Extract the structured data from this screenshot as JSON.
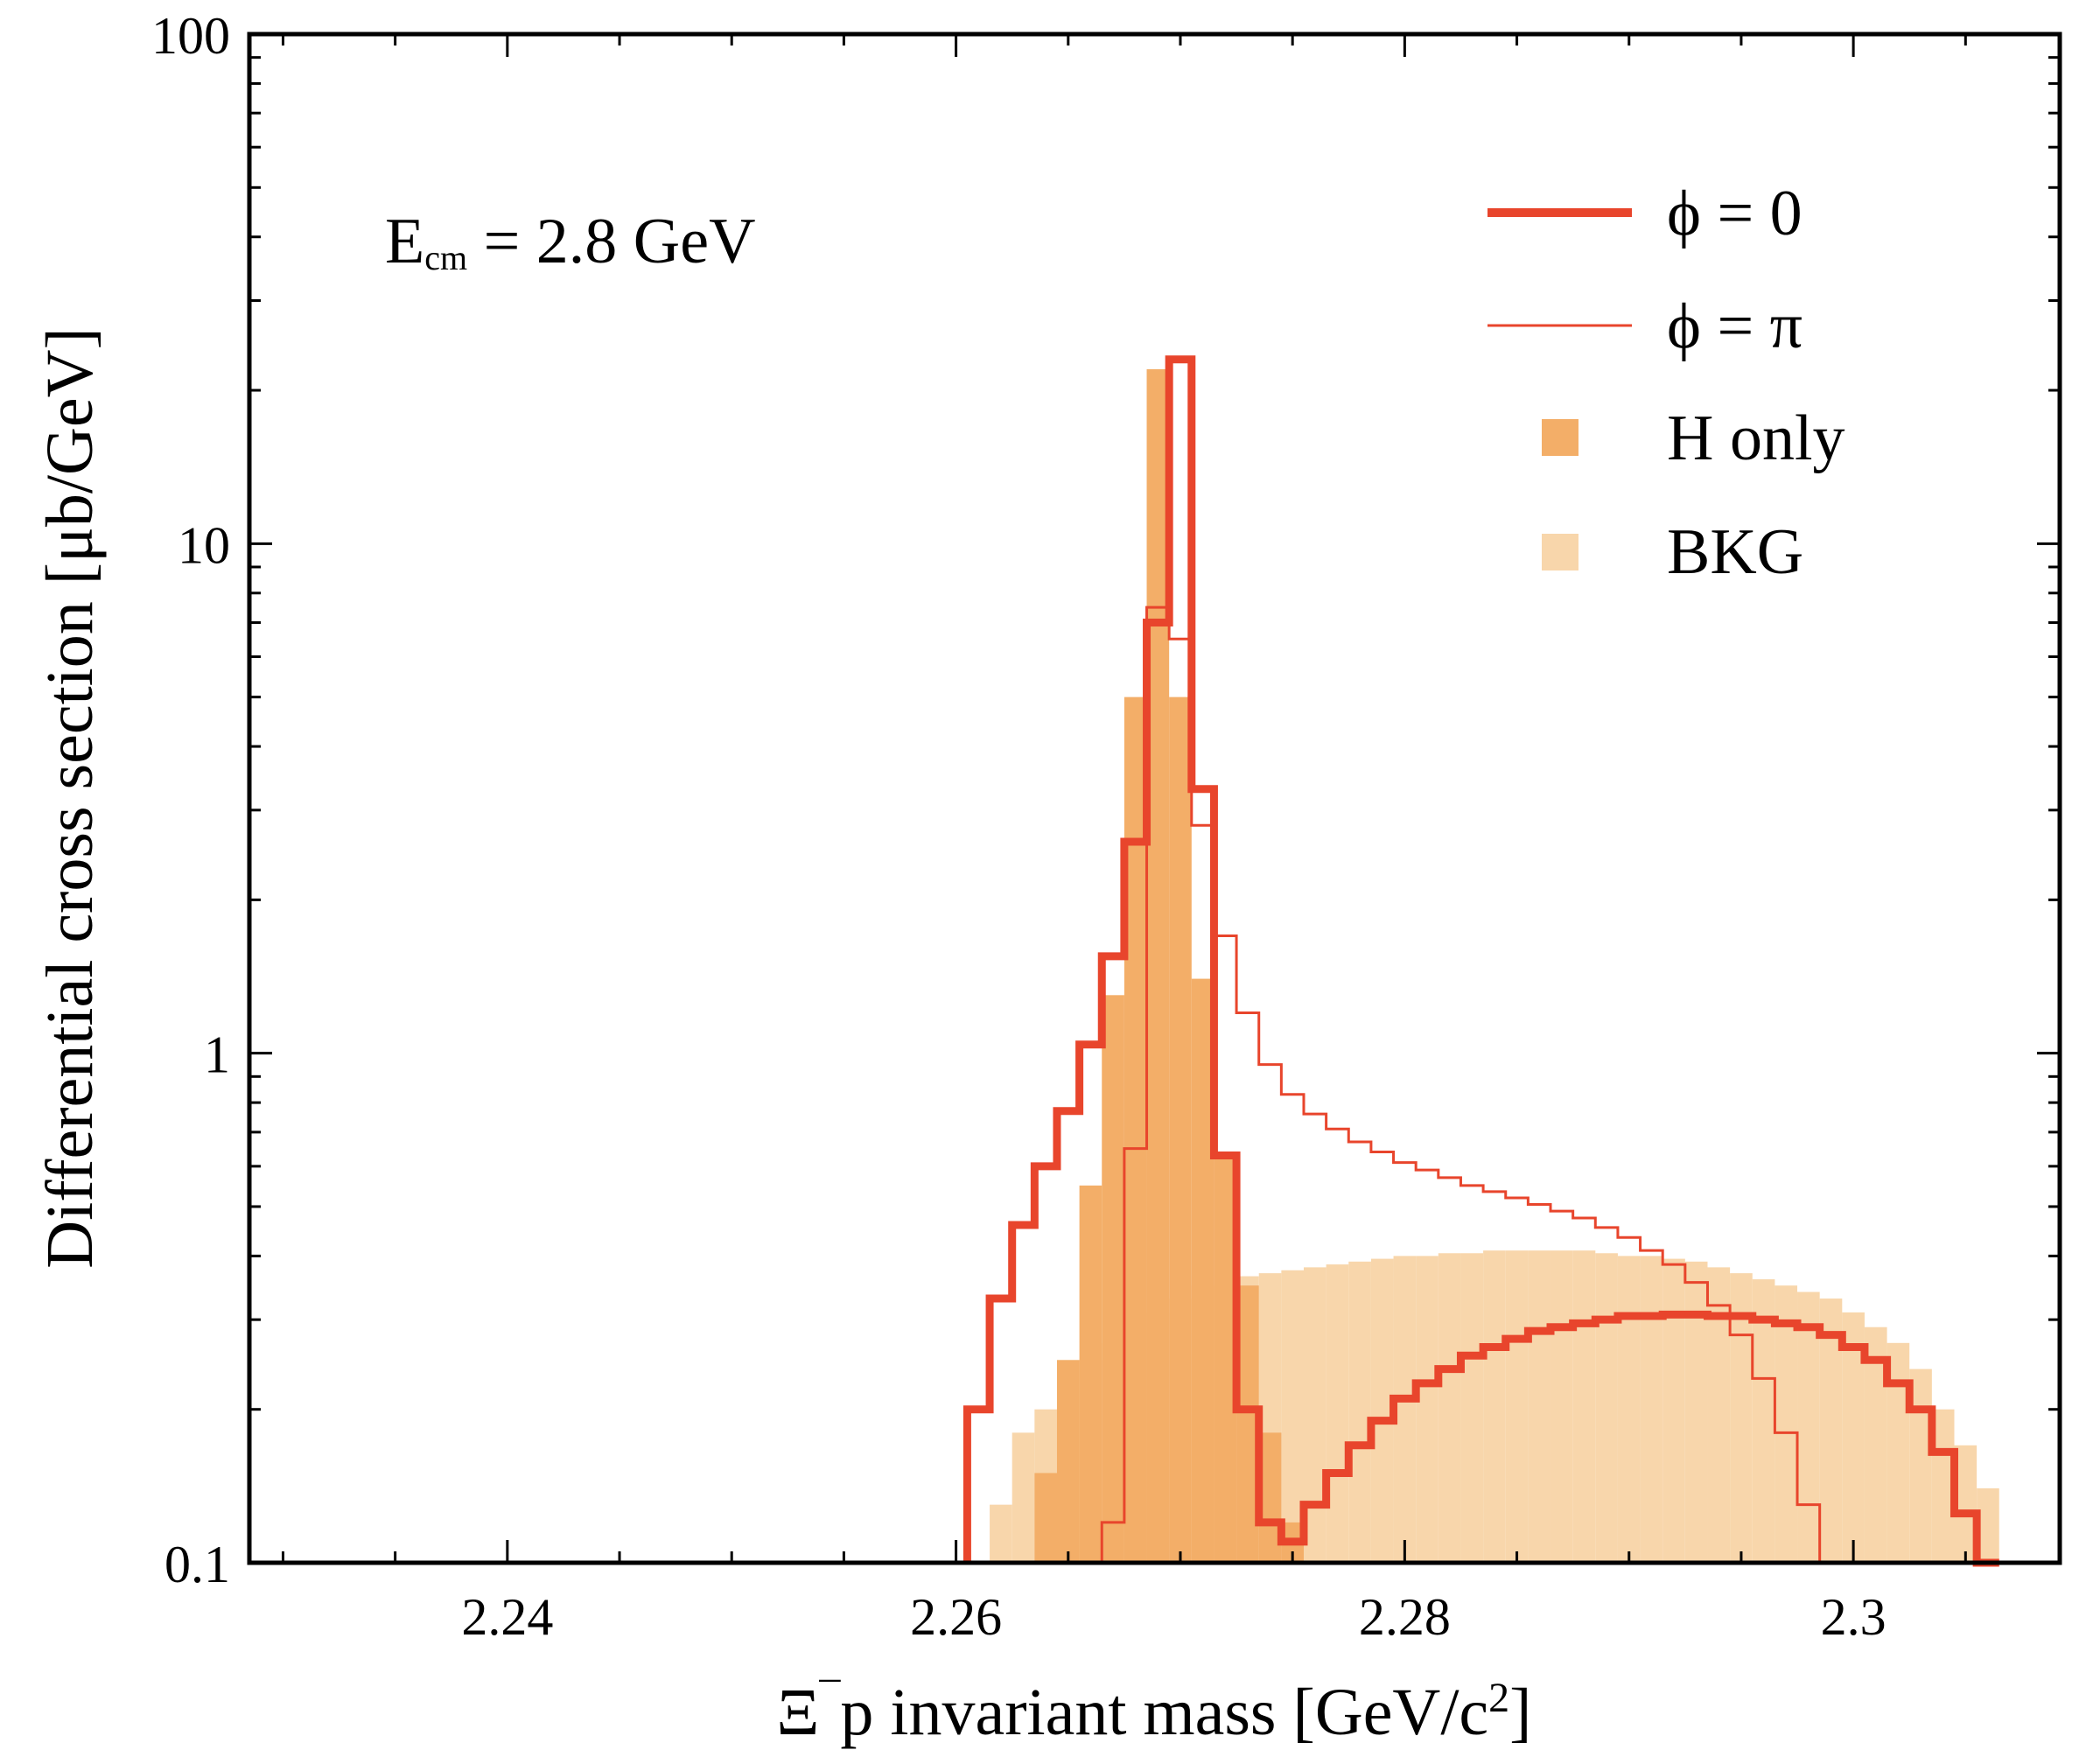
{
  "chart_data": {
    "type": "histogram",
    "title": "",
    "annotation": {
      "main": "E",
      "sub": "cm",
      "rest": " = 2.8 GeV"
    },
    "xlabel": {
      "main": "Ξ",
      "sup1": "¯",
      "mid": "p invariant mass [GeV/c",
      "sup2": "2",
      "end": "]"
    },
    "ylabel": "Differential cross section [μb/GeV]",
    "xlim": [
      2.2285,
      2.3092
    ],
    "ylim": [
      0.1,
      100
    ],
    "yscale": "log",
    "x_ticks": [
      2.24,
      2.26,
      2.28,
      2.3
    ],
    "x_tick_labels": [
      "2.24",
      "2.26",
      "2.28",
      "2.3"
    ],
    "y_ticks": [
      0.1,
      1,
      10,
      100
    ],
    "y_tick_labels": [
      "0.1",
      "1",
      "10",
      "100"
    ],
    "bin_width": 0.001,
    "colors": {
      "phi0": "#e8452c",
      "phipi": "#e8452c",
      "h_only": "#f3ae68",
      "bkg": "#f8d6ab"
    },
    "legend": {
      "position": "top-right",
      "entries": [
        {
          "key": "phi0",
          "label": "ϕ = 0",
          "style": "thick-line"
        },
        {
          "key": "phipi",
          "label": "ϕ = π",
          "style": "thin-line"
        },
        {
          "key": "h_only",
          "label": "H only",
          "style": "filled"
        },
        {
          "key": "bkg",
          "label": "BKG",
          "style": "filled"
        }
      ]
    },
    "series": [
      {
        "key": "bkg",
        "name": "BKG",
        "kind": "fill",
        "x_start": 2.2615,
        "values": [
          0.13,
          0.18,
          0.2,
          0.23,
          0.25,
          0.27,
          0.29,
          0.31,
          0.33,
          0.35,
          0.36,
          0.365,
          0.37,
          0.375,
          0.38,
          0.385,
          0.39,
          0.395,
          0.4,
          0.4,
          0.405,
          0.405,
          0.41,
          0.41,
          0.41,
          0.41,
          0.41,
          0.405,
          0.4,
          0.4,
          0.395,
          0.39,
          0.38,
          0.37,
          0.36,
          0.35,
          0.34,
          0.33,
          0.31,
          0.29,
          0.27,
          0.24,
          0.2,
          0.17,
          0.14
        ]
      },
      {
        "key": "h_only",
        "name": "H only",
        "kind": "fill",
        "x_start": 2.2635,
        "values": [
          0.15,
          0.25,
          0.55,
          1.3,
          5.0,
          22.0,
          5.0,
          1.4,
          0.62,
          0.35,
          0.18,
          0.12
        ]
      },
      {
        "key": "phi0",
        "name": "ϕ = 0",
        "kind": "step",
        "width": "thick",
        "x_start": 2.2605,
        "values": [
          0.2,
          0.33,
          0.46,
          0.6,
          0.77,
          1.04,
          1.55,
          2.6,
          7.0,
          23.0,
          3.3,
          0.63,
          0.2,
          0.12,
          0.11,
          0.13,
          0.15,
          0.17,
          0.19,
          0.21,
          0.225,
          0.24,
          0.255,
          0.265,
          0.275,
          0.285,
          0.29,
          0.295,
          0.3,
          0.305,
          0.305,
          0.307,
          0.307,
          0.305,
          0.305,
          0.3,
          0.295,
          0.29,
          0.28,
          0.265,
          0.25,
          0.225,
          0.2,
          0.165,
          0.125,
          0.1
        ]
      },
      {
        "key": "phipi",
        "name": "ϕ = π",
        "kind": "step",
        "width": "thin",
        "x_start": 2.2665,
        "values": [
          0.12,
          0.65,
          7.5,
          6.5,
          2.8,
          1.7,
          1.2,
          0.95,
          0.83,
          0.76,
          0.71,
          0.67,
          0.64,
          0.61,
          0.59,
          0.57,
          0.55,
          0.535,
          0.52,
          0.505,
          0.49,
          0.475,
          0.455,
          0.435,
          0.41,
          0.385,
          0.355,
          0.32,
          0.28,
          0.23,
          0.18,
          0.13,
          0.1
        ]
      }
    ]
  }
}
